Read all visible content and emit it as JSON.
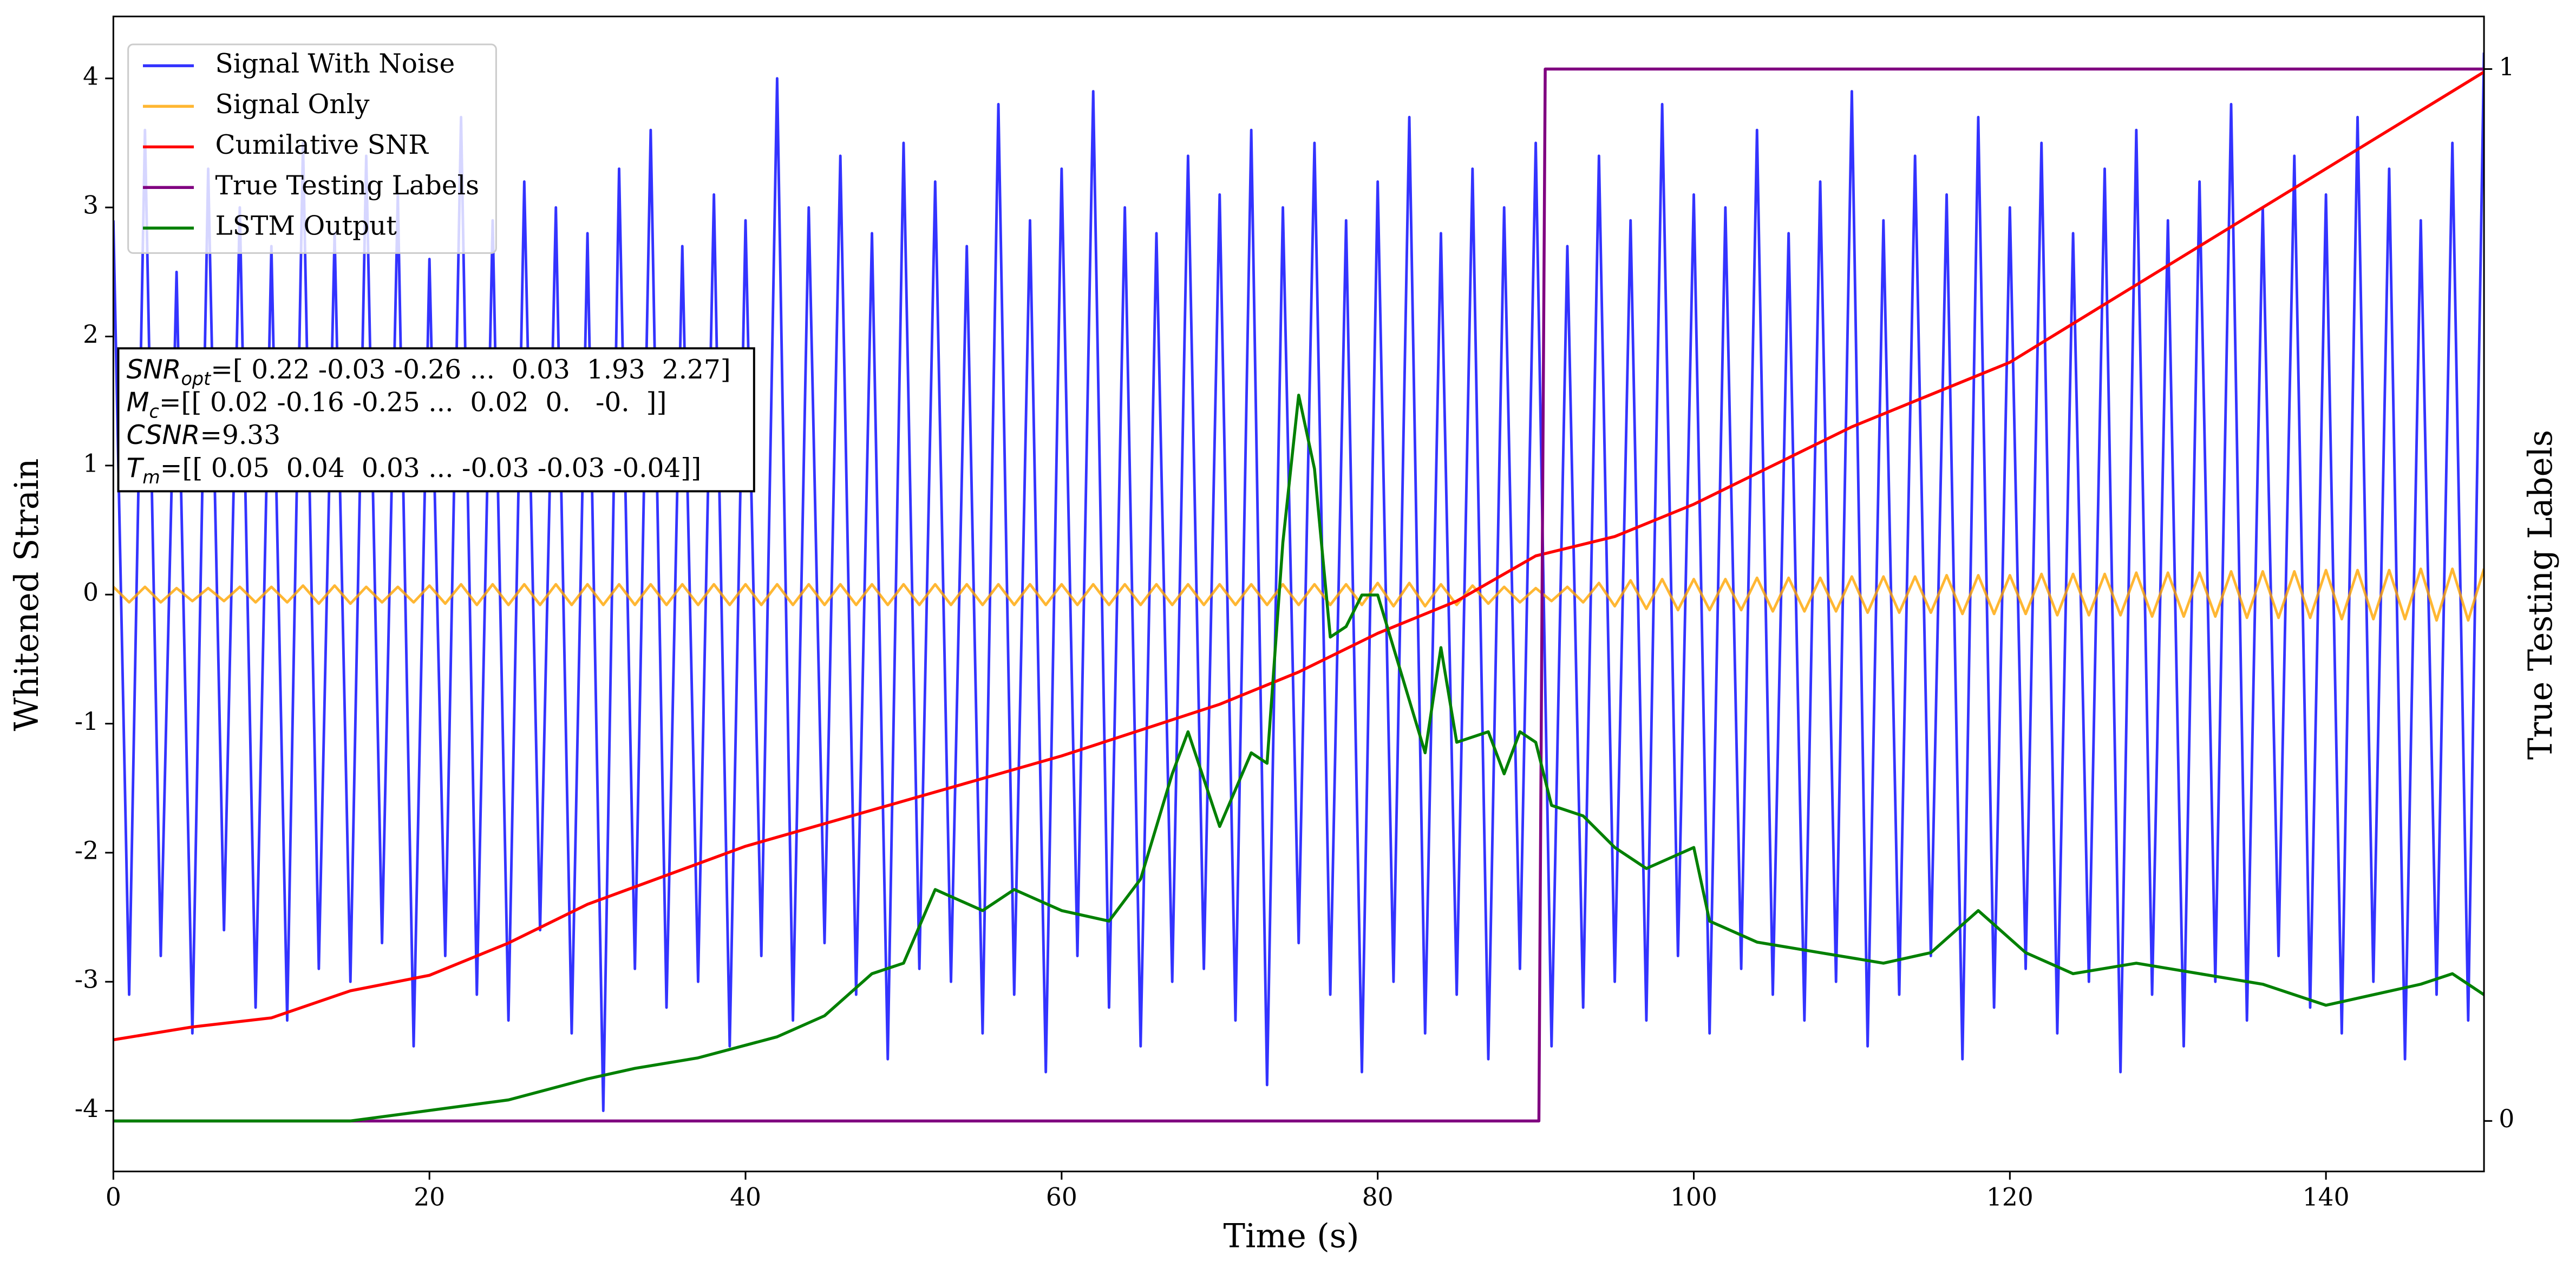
{
  "chart_data": {
    "type": "line",
    "xlabel": "Time (s)",
    "ylabel": "Whitened Strain",
    "y2label": "True Testing Labels",
    "xlim": [
      0,
      150
    ],
    "ylim": [
      -4.47,
      4.48
    ],
    "y2lim": [
      -0.048,
      1.05
    ],
    "xticks": [
      0,
      20,
      40,
      60,
      80,
      100,
      120,
      140
    ],
    "yticks": [
      -4,
      -3,
      -2,
      -1,
      0,
      1,
      2,
      3,
      4
    ],
    "y2ticks": [
      0,
      1
    ],
    "grid": false,
    "legend": "upper left",
    "x": [
      0,
      1,
      2,
      3,
      4,
      5,
      6,
      7,
      8,
      9,
      10,
      11,
      12,
      13,
      14,
      15,
      16,
      17,
      18,
      19,
      20,
      21,
      22,
      23,
      24,
      25,
      26,
      27,
      28,
      29,
      30,
      31,
      32,
      33,
      34,
      35,
      36,
      37,
      38,
      39,
      40,
      41,
      42,
      43,
      44,
      45,
      46,
      47,
      48,
      49,
      50,
      51,
      52,
      53,
      54,
      55,
      56,
      57,
      58,
      59,
      60,
      61,
      62,
      63,
      64,
      65,
      66,
      67,
      68,
      69,
      70,
      71,
      72,
      73,
      74,
      75,
      76,
      77,
      78,
      79,
      80,
      81,
      82,
      83,
      84,
      85,
      86,
      87,
      88,
      89,
      90,
      91,
      92,
      93,
      94,
      95,
      96,
      97,
      98,
      99,
      100,
      101,
      102,
      103,
      104,
      105,
      106,
      107,
      108,
      109,
      110,
      111,
      112,
      113,
      114,
      115,
      116,
      117,
      118,
      119,
      120,
      121,
      122,
      123,
      124,
      125,
      126,
      127,
      128,
      129,
      130,
      131,
      132,
      133,
      134,
      135,
      136,
      137,
      138,
      139,
      140,
      141,
      142,
      143,
      144,
      145,
      146,
      147,
      148,
      149,
      150
    ],
    "series": [
      {
        "name": "Signal With Noise",
        "color": "#0000ff",
        "alpha": 0.8,
        "values": [
          2.9,
          -3.1,
          3.6,
          -2.8,
          2.5,
          -3.4,
          3.3,
          -2.6,
          3.0,
          -3.2,
          2.7,
          -3.3,
          3.5,
          -2.9,
          2.8,
          -3.0,
          3.4,
          -2.7,
          3.1,
          -3.5,
          2.6,
          -2.8,
          3.7,
          -3.1,
          2.9,
          -3.3,
          3.2,
          -2.6,
          3.0,
          -3.4,
          2.8,
          -4.0,
          3.3,
          -2.9,
          3.6,
          -3.2,
          2.7,
          -3.0,
          3.1,
          -3.5,
          2.9,
          -2.8,
          4.0,
          -3.3,
          3.0,
          -2.7,
          3.4,
          -3.1,
          2.8,
          -3.6,
          3.5,
          -2.9,
          3.2,
          -3.0,
          2.7,
          -3.4,
          3.8,
          -3.1,
          2.9,
          -3.7,
          3.3,
          -2.8,
          3.9,
          -3.2,
          3.0,
          -3.5,
          2.8,
          -3.0,
          3.4,
          -2.9,
          3.1,
          -3.3,
          3.6,
          -3.8,
          3.0,
          -2.7,
          3.5,
          -3.1,
          2.9,
          -3.7,
          3.2,
          -3.0,
          3.7,
          -3.4,
          2.8,
          -3.1,
          3.3,
          -3.6,
          3.0,
          -2.9,
          3.5,
          -3.5,
          2.7,
          -3.2,
          3.4,
          -3.0,
          2.9,
          -3.3,
          3.8,
          -2.8,
          3.1,
          -3.4,
          3.0,
          -2.9,
          3.6,
          -3.1,
          2.8,
          -3.3,
          3.2,
          -3.0,
          3.9,
          -3.5,
          2.9,
          -3.1,
          3.4,
          -2.8,
          3.1,
          -3.6,
          3.7,
          -3.2,
          3.0,
          -2.9,
          3.5,
          -3.4,
          2.8,
          -3.0,
          3.3,
          -3.7,
          3.6,
          -3.1,
          2.9,
          -3.5,
          3.2,
          -3.0,
          3.8,
          -3.3,
          3.0,
          -2.8,
          3.4,
          -3.2,
          3.1,
          -3.4,
          3.7,
          -3.0,
          3.3,
          -3.6,
          2.9,
          -3.1,
          3.5,
          -3.3,
          4.2
        ]
      },
      {
        "name": "Signal Only",
        "color": "#ffa500",
        "alpha": 0.8,
        "values": [
          0.06,
          -0.06,
          0.06,
          -0.06,
          0.05,
          -0.05,
          0.05,
          -0.05,
          0.06,
          -0.06,
          0.06,
          -0.06,
          0.07,
          -0.07,
          0.07,
          -0.07,
          0.06,
          -0.06,
          0.06,
          -0.06,
          0.07,
          -0.07,
          0.08,
          -0.08,
          0.08,
          -0.08,
          0.08,
          -0.08,
          0.08,
          -0.08,
          0.08,
          -0.08,
          0.08,
          -0.08,
          0.08,
          -0.08,
          0.08,
          -0.08,
          0.08,
          -0.08,
          0.08,
          -0.08,
          0.08,
          -0.08,
          0.08,
          -0.08,
          0.08,
          -0.08,
          0.08,
          -0.08,
          0.08,
          -0.08,
          0.08,
          -0.08,
          0.08,
          -0.08,
          0.08,
          -0.08,
          0.08,
          -0.08,
          0.08,
          -0.08,
          0.08,
          -0.08,
          0.08,
          -0.08,
          0.08,
          -0.08,
          0.08,
          -0.08,
          0.08,
          -0.08,
          0.08,
          -0.08,
          0.08,
          -0.08,
          0.08,
          -0.08,
          0.08,
          -0.08,
          0.09,
          -0.09,
          0.09,
          -0.09,
          0.08,
          -0.08,
          0.07,
          -0.07,
          0.06,
          -0.06,
          0.05,
          -0.05,
          0.06,
          -0.06,
          0.09,
          -0.09,
          0.11,
          -0.11,
          0.12,
          -0.12,
          0.12,
          -0.12,
          0.12,
          -0.12,
          0.13,
          -0.13,
          0.13,
          -0.13,
          0.13,
          -0.13,
          0.14,
          -0.14,
          0.14,
          -0.14,
          0.14,
          -0.14,
          0.15,
          -0.15,
          0.15,
          -0.15,
          0.15,
          -0.15,
          0.16,
          -0.16,
          0.16,
          -0.16,
          0.16,
          -0.16,
          0.17,
          -0.17,
          0.17,
          -0.17,
          0.17,
          -0.17,
          0.18,
          -0.18,
          0.18,
          -0.18,
          0.18,
          -0.18,
          0.19,
          -0.19,
          0.19,
          -0.19,
          0.19,
          -0.19,
          0.2,
          -0.2,
          0.2,
          -0.2,
          0.2
        ]
      },
      {
        "name": "Cumilative SNR",
        "color": "#ff0000",
        "x": [
          0,
          5,
          10,
          15,
          20,
          25,
          30,
          40,
          50,
          60,
          70,
          75,
          80,
          85,
          90,
          95,
          100,
          110,
          120,
          130,
          140,
          150
        ],
        "values": [
          -3.45,
          -3.35,
          -3.28,
          -3.07,
          -2.95,
          -2.7,
          -2.4,
          -1.95,
          -1.6,
          -1.25,
          -0.85,
          -0.6,
          -0.3,
          -0.05,
          0.3,
          0.45,
          0.7,
          1.3,
          1.8,
          2.55,
          3.3,
          4.05
        ]
      },
      {
        "name": "True Testing Labels",
        "color": "#800080",
        "axis": "y2",
        "x": [
          0,
          90.2,
          90.6,
          150
        ],
        "values": [
          0,
          0,
          1,
          1
        ]
      },
      {
        "name": "LSTM Output",
        "color": "#008000",
        "axis": "y2",
        "x": [
          0,
          15,
          20,
          25,
          30,
          33,
          37,
          42,
          45,
          48,
          50,
          52,
          55,
          57,
          60,
          63,
          65,
          67,
          68,
          70,
          72,
          73,
          74,
          75,
          76,
          77,
          78,
          79,
          80,
          82,
          83,
          84,
          85,
          87,
          88,
          89,
          90,
          91,
          93,
          95,
          97,
          100,
          101,
          104,
          108,
          112,
          115,
          118,
          121,
          124,
          128,
          132,
          136,
          140,
          143,
          146,
          148,
          150
        ],
        "values": [
          0,
          0,
          0.01,
          0.02,
          0.04,
          0.05,
          0.06,
          0.08,
          0.1,
          0.14,
          0.15,
          0.22,
          0.2,
          0.22,
          0.2,
          0.19,
          0.23,
          0.33,
          0.37,
          0.28,
          0.35,
          0.34,
          0.55,
          0.69,
          0.62,
          0.46,
          0.47,
          0.5,
          0.5,
          0.4,
          0.35,
          0.45,
          0.36,
          0.37,
          0.33,
          0.37,
          0.36,
          0.3,
          0.29,
          0.26,
          0.24,
          0.26,
          0.19,
          0.17,
          0.16,
          0.15,
          0.16,
          0.2,
          0.16,
          0.14,
          0.15,
          0.14,
          0.13,
          0.11,
          0.12,
          0.13,
          0.14,
          0.12
        ]
      }
    ],
    "annotation": [
      {
        "symbol": "SNR",
        "subscript": "opt",
        "text": "=[ 0.22 -0.03 -0.26 ...  0.03  1.93  2.27]"
      },
      {
        "symbol": "M",
        "subscript": "c",
        "text": "=[[ 0.02 -0.16 -0.25 ...  0.02  0.   -0.  ]]"
      },
      {
        "symbol": "CSNR",
        "text": "=9.33"
      },
      {
        "symbol": "T",
        "subscript": "m",
        "text": "=[[ 0.05  0.04  0.03 ... -0.03 -0.03 -0.04]]"
      }
    ]
  }
}
